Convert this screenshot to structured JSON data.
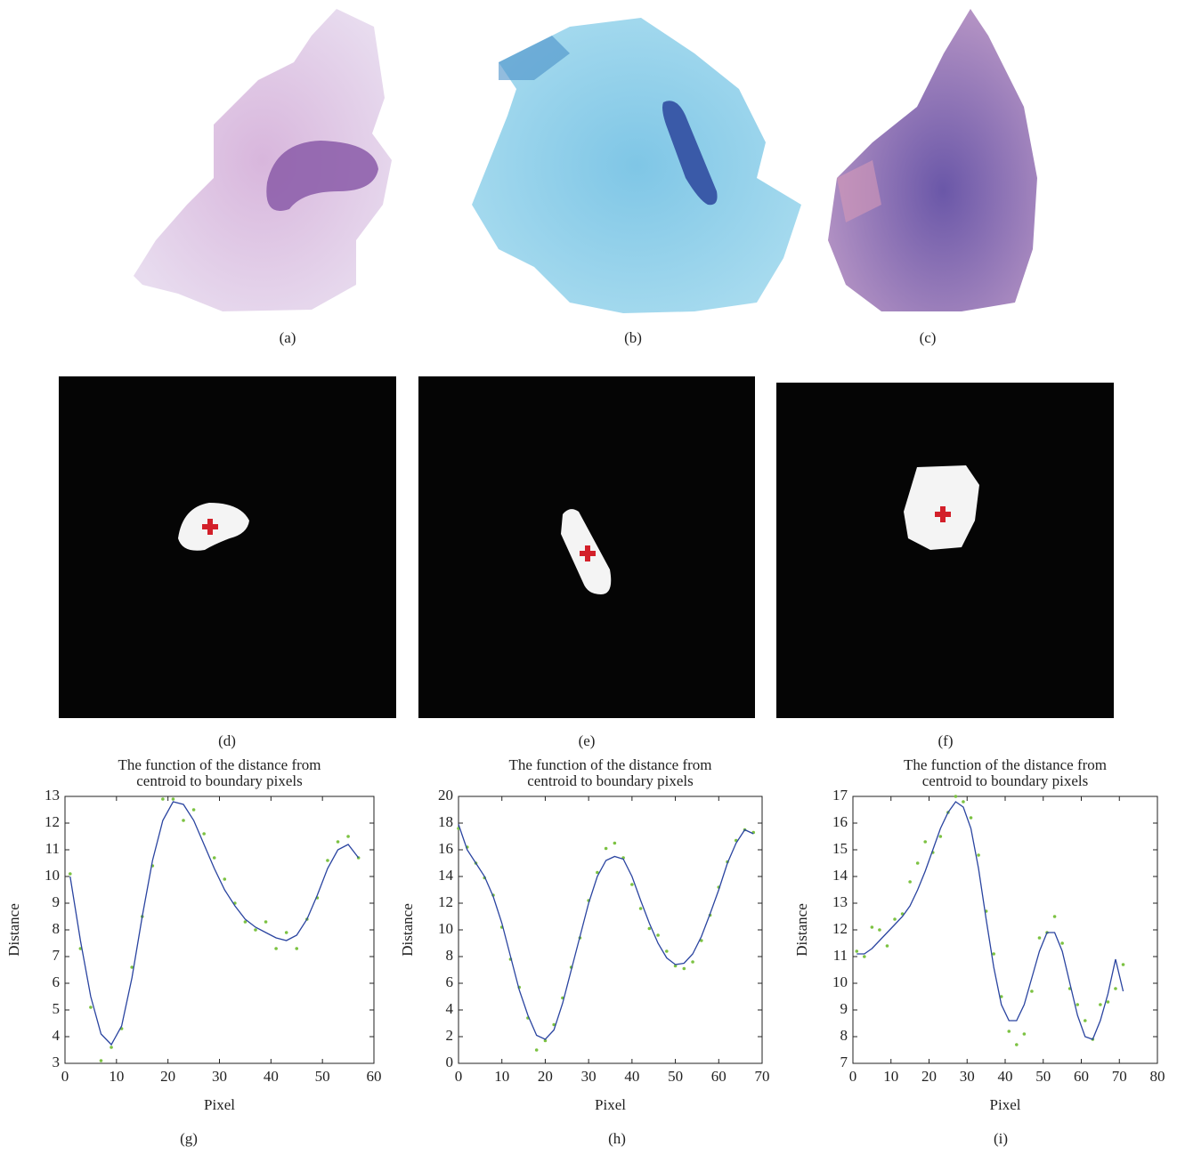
{
  "captions": [
    "(a)",
    "(b)",
    "(c)",
    "(d)",
    "(e)",
    "(f)",
    "(g)",
    "(h)",
    "(i)"
  ],
  "chart_data": [
    {
      "type": "line",
      "title": [
        "The function of the distance from",
        "centroid to boundary pixels"
      ],
      "xlabel": "Pixel",
      "ylabel": "Distance",
      "x": [
        1,
        3,
        5,
        7,
        9,
        11,
        13,
        15,
        17,
        19,
        21,
        23,
        25,
        27,
        29,
        31,
        33,
        35,
        37,
        39,
        41,
        43,
        45,
        47,
        49,
        51,
        53,
        55,
        57
      ],
      "series": [
        {
          "color": "#7cc242",
          "marker": "dot",
          "values": [
            10.1,
            7.3,
            5.1,
            3.1,
            3.6,
            4.3,
            6.6,
            8.5,
            10.4,
            12.9,
            12.9,
            12.1,
            12.5,
            11.6,
            10.7,
            9.9,
            9.0,
            8.3,
            8.0,
            8.3,
            7.3,
            7.9,
            7.3,
            8.4,
            9.2,
            10.6,
            11.3,
            11.5,
            10.7
          ]
        },
        {
          "color": "#2a44a0",
          "marker": "none",
          "values": [
            10,
            7.6,
            5.5,
            4.1,
            3.7,
            4.4,
            6.2,
            8.5,
            10.6,
            12.1,
            12.8,
            12.7,
            12.1,
            11.2,
            10.3,
            9.5,
            8.9,
            8.4,
            8.1,
            7.9,
            7.7,
            7.6,
            7.8,
            8.4,
            9.3,
            10.3,
            11.0,
            11.2,
            10.7
          ]
        }
      ],
      "xlim": [
        0,
        60
      ],
      "ylim": [
        3,
        13
      ],
      "xticks": [
        0,
        10,
        20,
        30,
        40,
        50,
        60
      ],
      "yticks": [
        3,
        4,
        5,
        6,
        7,
        8,
        9,
        10,
        11,
        12,
        13
      ]
    },
    {
      "type": "line",
      "title": [
        "The function of the distance from",
        "centroid to boundary pixels"
      ],
      "xlabel": "Pixel",
      "ylabel": "Distance",
      "x": [
        0,
        2,
        4,
        6,
        8,
        10,
        12,
        14,
        16,
        18,
        20,
        22,
        24,
        26,
        28,
        30,
        32,
        34,
        36,
        38,
        40,
        42,
        44,
        46,
        48,
        50,
        52,
        54,
        56,
        58,
        60,
        62,
        64,
        66,
        68
      ],
      "series": [
        {
          "color": "#7cc242",
          "marker": "dot",
          "values": [
            17.6,
            16.2,
            15.0,
            13.9,
            12.6,
            10.2,
            7.8,
            5.7,
            3.4,
            1.0,
            1.7,
            2.9,
            4.9,
            7.2,
            9.4,
            12.2,
            14.3,
            16.1,
            16.5,
            15.4,
            13.4,
            11.6,
            10.1,
            9.6,
            8.4,
            7.3,
            7.1,
            7.6,
            9.2,
            11.1,
            13.2,
            15.1,
            16.7,
            17.5,
            17.3
          ]
        },
        {
          "color": "#2a44a0",
          "marker": "none",
          "values": [
            17.9,
            16,
            15,
            14,
            12.5,
            10.5,
            8,
            5.5,
            3.6,
            2.1,
            1.8,
            2.5,
            4.5,
            7,
            9.5,
            12,
            14,
            15.2,
            15.5,
            15.3,
            14,
            12.2,
            10.5,
            9,
            7.9,
            7.4,
            7.5,
            8.2,
            9.5,
            11.2,
            13,
            15,
            16.5,
            17.5,
            17.2
          ]
        }
      ],
      "xlim": [
        0,
        70
      ],
      "ylim": [
        0,
        20
      ],
      "xticks": [
        0,
        10,
        20,
        30,
        40,
        50,
        60,
        70
      ],
      "yticks": [
        0,
        2,
        4,
        6,
        8,
        10,
        12,
        14,
        16,
        18,
        20
      ]
    },
    {
      "type": "line",
      "title": [
        "The function of the distance from",
        "centroid to boundary pixels"
      ],
      "xlabel": "Pixel",
      "ylabel": "Distance",
      "x": [
        1,
        3,
        5,
        7,
        9,
        11,
        13,
        15,
        17,
        19,
        21,
        23,
        25,
        27,
        29,
        31,
        33,
        35,
        37,
        39,
        41,
        43,
        45,
        47,
        49,
        51,
        53,
        55,
        57,
        59,
        61,
        63,
        65,
        67,
        69,
        71
      ],
      "series": [
        {
          "color": "#7cc242",
          "marker": "dot",
          "values": [
            11.2,
            11.0,
            12.1,
            12.0,
            11.4,
            12.4,
            12.6,
            13.8,
            14.5,
            15.3,
            14.9,
            15.5,
            16.4,
            17.0,
            16.8,
            16.2,
            14.8,
            12.7,
            11.1,
            9.5,
            8.2,
            7.7,
            8.1,
            9.7,
            11.7,
            11.9,
            12.5,
            11.5,
            9.8,
            9.2,
            8.6,
            7.9,
            9.2,
            9.3,
            9.8,
            10.7
          ]
        },
        {
          "color": "#2a44a0",
          "marker": "none",
          "values": [
            11.1,
            11.1,
            11.3,
            11.6,
            11.9,
            12.2,
            12.5,
            12.9,
            13.5,
            14.2,
            15.0,
            15.8,
            16.4,
            16.8,
            16.6,
            15.8,
            14.3,
            12.4,
            10.6,
            9.2,
            8.6,
            8.6,
            9.2,
            10.2,
            11.2,
            11.9,
            11.9,
            11.2,
            10.0,
            8.8,
            8.0,
            7.9,
            8.6,
            9.6,
            10.9,
            9.7
          ]
        }
      ],
      "xlim": [
        0,
        80
      ],
      "ylim": [
        7,
        17
      ],
      "xticks": [
        0,
        10,
        20,
        30,
        40,
        50,
        60,
        70,
        80
      ],
      "yticks": [
        7,
        8,
        9,
        10,
        11,
        12,
        13,
        14,
        15,
        16,
        17
      ]
    }
  ]
}
